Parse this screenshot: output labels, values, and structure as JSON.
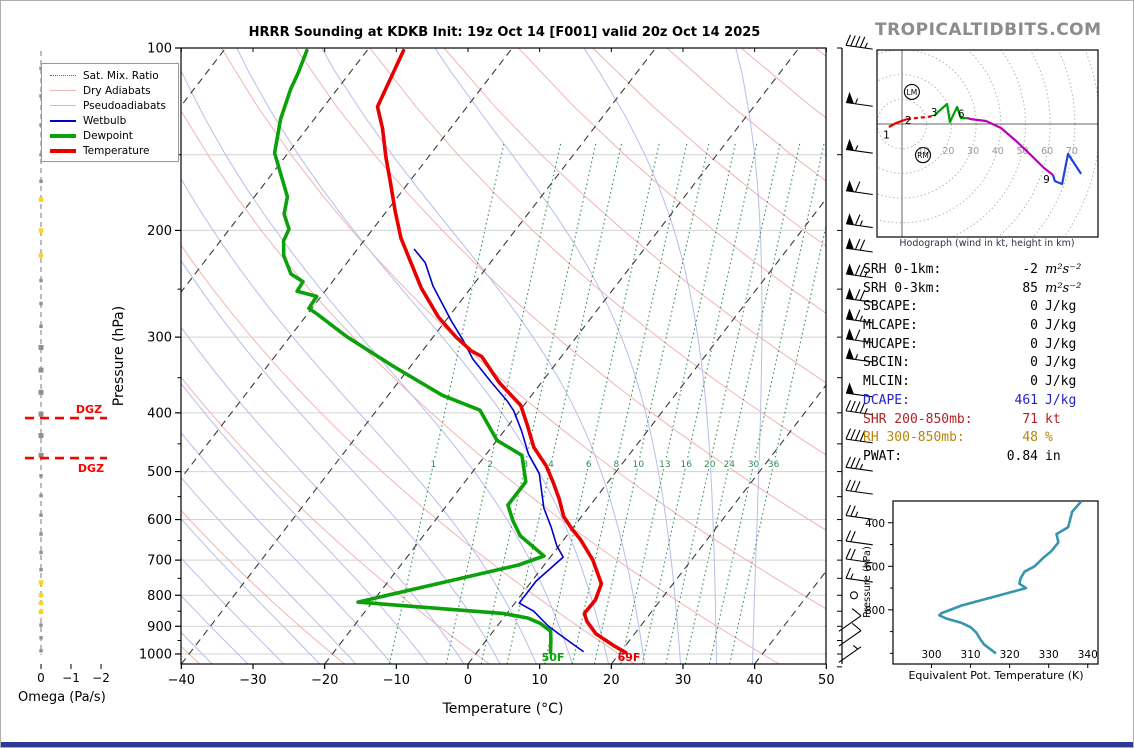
{
  "header": {
    "title": "HRRR Sounding at KDKB Init: 19z Oct 14 [F001] valid 20z Oct 14 2025",
    "watermark": "TROPICALTIDBITS.COM"
  },
  "legend": {
    "items": [
      {
        "label": "Sat. Mix. Ratio",
        "key": "satmix"
      },
      {
        "label": "Dry Adiabats",
        "key": "dry"
      },
      {
        "label": "Pseudoadiabats",
        "key": "pseudo"
      },
      {
        "label": "Wetbulb",
        "key": "wetbulb"
      },
      {
        "label": "Dewpoint",
        "key": "dewpoint"
      },
      {
        "label": "Temperature",
        "key": "temperature"
      }
    ]
  },
  "skewt": {
    "xlabel": "Temperature (°C)",
    "ylabel": "Pressure (hPa)",
    "x_ticks": [
      -40,
      -30,
      -20,
      -10,
      0,
      10,
      20,
      30,
      40,
      50
    ],
    "pressure_ticks": [
      100,
      200,
      300,
      400,
      500,
      600,
      700,
      800,
      900,
      1000
    ],
    "surface_temp_label": "69F",
    "surface_dew_label": "50F",
    "dgz_label": "DGZ",
    "mixing_ratio_values": [
      1,
      2,
      3,
      4,
      6,
      8,
      10,
      13,
      16,
      20,
      24,
      30,
      36
    ]
  },
  "omega": {
    "label": "Omega (Pa/s)",
    "ticks": [
      0,
      -1,
      -2
    ]
  },
  "hodograph": {
    "caption": "Hodograph (wind in kt, height in km)",
    "ring_labels": [
      10,
      20,
      30,
      40,
      50,
      60,
      70
    ]
  },
  "stats": {
    "rows": [
      {
        "label": "SRH 0-1km:",
        "value": "-2",
        "unit": "m²s⁻²",
        "color": "#000000",
        "unit_italic": true
      },
      {
        "label": "SRH 0-3km:",
        "value": "85",
        "unit": "m²s⁻²",
        "color": "#000000",
        "unit_italic": true
      },
      {
        "label": "SBCAPE:",
        "value": "0",
        "unit": "J/kg",
        "color": "#000000"
      },
      {
        "label": "MLCAPE:",
        "value": "0",
        "unit": "J/kg",
        "color": "#000000"
      },
      {
        "label": "MUCAPE:",
        "value": "0",
        "unit": "J/kg",
        "color": "#000000"
      },
      {
        "label": "SBCIN:",
        "value": "0",
        "unit": "J/kg",
        "color": "#000000"
      },
      {
        "label": "MLCIN:",
        "value": "0",
        "unit": "J/kg",
        "color": "#000000"
      },
      {
        "label": "DCAPE:",
        "value": "461",
        "unit": "J/kg",
        "color": "#2323cc"
      },
      {
        "label": "SHR 200-850mb:",
        "value": "71",
        "unit": "kt",
        "color": "#b22222"
      },
      {
        "label": "RH 300-850mb:",
        "value": "48",
        "unit": "%",
        "color": "#b8860b"
      },
      {
        "label": "PWAT:",
        "value": "0.84",
        "unit": "in",
        "color": "#000000"
      }
    ]
  },
  "theta_e": {
    "xlabel": "Equivalent Pot. Temperature (K)",
    "ylabel": "Pressure (hPa)",
    "x_ticks": [
      300,
      310,
      320,
      330,
      340
    ],
    "p_tick_labels": [
      400,
      600,
      800
    ]
  },
  "colors": {
    "temperature": "#e80000",
    "dewpoint": "#0aa10a",
    "wetbulb": "#0000cd",
    "dry_adiabat": "#f0b4b4",
    "pseudoadiabat": "#b9bde9",
    "sat_mix_ratio": "#2e8b57",
    "isotherm_dash": "#3a3a3a",
    "gridline": "#d3d3d3",
    "dgz": "#ff0000",
    "omega_marker": "#8f8f8f",
    "omega_marker_highlight": "#ffd21f",
    "theta_e_curve": "#3796ae",
    "hodo_seg_0_3km": "#dd0000",
    "hodo_seg_3_6km": "#00a000",
    "hodo_seg_6_9km": "#bb00bb",
    "hodo_seg_9km_plus": "#2244dd",
    "footer_bar": "#2c3a94"
  },
  "chart_data": [
    {
      "id": "skewt",
      "type": "line",
      "title": "HRRR Sounding at KDKB Init: 19z Oct 14 [F001] valid 20z Oct 14 2025",
      "xlabel": "Temperature (°C)",
      "ylabel": "Pressure (hPa)",
      "xlim": [
        -40,
        50
      ],
      "pressure_range": [
        100,
        1050
      ],
      "y_scale": "log",
      "series": [
        {
          "name": "Temperature",
          "units": "p_hPa_vs_degC",
          "points": [
            [
              101,
              -74.9
            ],
            [
              125,
              -72.5
            ],
            [
              136,
              -69.4
            ],
            [
              151,
              -66.0
            ],
            [
              167,
              -62.5
            ],
            [
              186,
              -58.8
            ],
            [
              206,
              -55.1
            ],
            [
              226,
              -51.1
            ],
            [
              249,
              -46.9
            ],
            [
              278,
              -41.4
            ],
            [
              300,
              -36.8
            ],
            [
              316,
              -33.2
            ],
            [
              323,
              -31.1
            ],
            [
              357,
              -25.8
            ],
            [
              378,
              -22.2
            ],
            [
              389,
              -20.4
            ],
            [
              420,
              -17.3
            ],
            [
              456,
              -14.1
            ],
            [
              489,
              -10.4
            ],
            [
              520,
              -7.7
            ],
            [
              555,
              -5.0
            ],
            [
              593,
              -2.5
            ],
            [
              623,
              0.1
            ],
            [
              647,
              2.3
            ],
            [
              699,
              6.2
            ],
            [
              766,
              10.0
            ],
            [
              814,
              10.9
            ],
            [
              857,
              10.8
            ],
            [
              883,
              12.0
            ],
            [
              926,
              14.6
            ],
            [
              968,
              18.3
            ],
            [
              995,
              20.8
            ]
          ]
        },
        {
          "name": "Dewpoint",
          "units": "p_hPa_vs_degC",
          "points": [
            [
              101,
              -88.4
            ],
            [
              110,
              -87.2
            ],
            [
              117,
              -86.5
            ],
            [
              131,
              -84.7
            ],
            [
              149,
              -81.9
            ],
            [
              176,
              -75.4
            ],
            [
              188,
              -74.0
            ],
            [
              199,
              -71.7
            ],
            [
              208,
              -71.2
            ],
            [
              220,
              -69.6
            ],
            [
              236,
              -66.6
            ],
            [
              243,
              -64.1
            ],
            [
              252,
              -63.9
            ],
            [
              257,
              -60.6
            ],
            [
              269,
              -60.4
            ],
            [
              275,
              -58.6
            ],
            [
              299,
              -52.2
            ],
            [
              334,
              -42.7
            ],
            [
              374,
              -32.5
            ],
            [
              396,
              -25.6
            ],
            [
              444,
              -20.0
            ],
            [
              470,
              -14.9
            ],
            [
              520,
              -11.5
            ],
            [
              568,
              -11.5
            ],
            [
              603,
              -9.1
            ],
            [
              638,
              -6.5
            ],
            [
              689,
              -1.0
            ],
            [
              713,
              -3.6
            ],
            [
              821,
              -22.0
            ],
            [
              857,
              -0.6
            ],
            [
              872,
              3.4
            ],
            [
              890,
              5.7
            ],
            [
              917,
              8.0
            ],
            [
              952,
              9.1
            ],
            [
              995,
              10.3
            ]
          ]
        },
        {
          "name": "Wetbulb",
          "units": "p_hPa_vs_degC",
          "points": [
            [
              215,
              -52.0
            ],
            [
              226,
              -49.1
            ],
            [
              247,
              -45.5
            ],
            [
              282,
              -39.2
            ],
            [
              304,
              -35.4
            ],
            [
              326,
              -32.1
            ],
            [
              355,
              -27.2
            ],
            [
              383,
              -22.7
            ],
            [
              397,
              -20.8
            ],
            [
              428,
              -17.6
            ],
            [
              468,
              -14.1
            ],
            [
              504,
              -10.5
            ],
            [
              574,
              -6.2
            ],
            [
              619,
              -3.0
            ],
            [
              663,
              -0.3
            ],
            [
              692,
              1.8
            ],
            [
              758,
              0.6
            ],
            [
              824,
              0.6
            ],
            [
              850,
              3.5
            ],
            [
              899,
              7.1
            ],
            [
              927,
              9.5
            ],
            [
              963,
              12.5
            ],
            [
              990,
              14.7
            ]
          ]
        }
      ],
      "surface_annotations": [
        {
          "text": "69F",
          "color": "#e80000"
        },
        {
          "text": "50F",
          "color": "#0aa10a"
        }
      ]
    },
    {
      "id": "hodograph",
      "type": "line",
      "units": "kt",
      "rings_kt": [
        10,
        20,
        30,
        40,
        50,
        60,
        70
      ],
      "segments": [
        {
          "name": "0-3km",
          "color": "#dd0000",
          "style": "solid",
          "points": [
            [
              -5.3,
              -1.2
            ],
            [
              -2.4,
              0.4
            ],
            [
              2.0,
              2.0
            ]
          ]
        },
        {
          "name": "2-3km",
          "color": "#dd0000",
          "style": "dashed",
          "points": [
            [
              2.0,
              2.0
            ],
            [
              13.0,
              3.2
            ]
          ]
        },
        {
          "name": "3-6km",
          "color": "#00a000",
          "style": "solid",
          "points": [
            [
              13.0,
              3.2
            ],
            [
              14.6,
              4.9
            ],
            [
              18.2,
              8.1
            ],
            [
              19.4,
              0.8
            ],
            [
              22.3,
              6.9
            ],
            [
              23.9,
              2.4
            ],
            [
              26.3,
              2.4
            ]
          ]
        },
        {
          "name": "6-9km",
          "color": "#bb00bb",
          "style": "solid",
          "points": [
            [
              26.3,
              2.4
            ],
            [
              27.9,
              2.0
            ],
            [
              34.0,
              1.2
            ],
            [
              40.1,
              -1.6
            ],
            [
              46.2,
              -6.9
            ],
            [
              52.2,
              -12.6
            ],
            [
              57.5,
              -17.8
            ],
            [
              61.1,
              -20.6
            ]
          ]
        },
        {
          "name": "9km+",
          "color": "#2244dd",
          "style": "solid",
          "points": [
            [
              61.1,
              -20.6
            ],
            [
              61.9,
              -23.1
            ],
            [
              64.8,
              -24.3
            ],
            [
              67.2,
              -12.1
            ],
            [
              72.5,
              -20.2
            ]
          ]
        }
      ],
      "height_labels": [
        {
          "text": "1",
          "u": -6.3,
          "v": -4.5
        },
        {
          "text": "2",
          "u": 2.5,
          "v": 1.4
        },
        {
          "text": "3",
          "u": 13.0,
          "v": 4.6
        },
        {
          "text": "6",
          "u": 24.0,
          "v": 4.0
        },
        {
          "text": "9",
          "u": 58.5,
          "v": -22.5
        }
      ],
      "storm_motions": [
        {
          "label": "LM",
          "u": 4.0,
          "v": 13.0
        },
        {
          "label": "RM",
          "u": 8.5,
          "v": -12.6
        }
      ]
    },
    {
      "id": "theta_e",
      "type": "line",
      "xlabel": "Equivalent Pot. Temperature (K)",
      "ylabel": "Pressure (hPa)",
      "xlim": [
        292,
        342
      ],
      "pressure_range": [
        300,
        1050
      ],
      "points": [
        [
          300,
          338.4
        ],
        [
          350,
          336.0
        ],
        [
          420,
          335.0
        ],
        [
          452,
          332.0
        ],
        [
          490,
          332.5
        ],
        [
          530,
          330.7
        ],
        [
          560,
          328.7
        ],
        [
          600,
          326.4
        ],
        [
          625,
          323.8
        ],
        [
          655,
          322.8
        ],
        [
          680,
          322.5
        ],
        [
          700,
          324.2
        ],
        [
          740,
          316.0
        ],
        [
          780,
          307.7
        ],
        [
          815,
          302.6
        ],
        [
          825,
          302.0
        ],
        [
          840,
          303.8
        ],
        [
          860,
          307.7
        ],
        [
          880,
          310.0
        ],
        [
          905,
          311.5
        ],
        [
          935,
          312.5
        ],
        [
          960,
          313.5
        ],
        [
          1000,
          316.5
        ]
      ]
    },
    {
      "id": "wind_barbs",
      "units": "kt",
      "levels": [
        {
          "p": 99,
          "spd": 45,
          "dir": "w"
        },
        {
          "p": 123,
          "spd": 55,
          "dir": "w"
        },
        {
          "p": 147,
          "spd": 55,
          "dir": "w"
        },
        {
          "p": 172,
          "spd": 60,
          "dir": "w"
        },
        {
          "p": 195,
          "spd": 65,
          "dir": "w"
        },
        {
          "p": 214,
          "spd": 70,
          "dir": "w"
        },
        {
          "p": 236,
          "spd": 75,
          "dir": "w"
        },
        {
          "p": 259,
          "spd": 70,
          "dir": "w"
        },
        {
          "p": 280,
          "spd": 65,
          "dir": "w"
        },
        {
          "p": 302,
          "spd": 60,
          "dir": "w"
        },
        {
          "p": 325,
          "spd": 55,
          "dir": "w"
        },
        {
          "p": 371,
          "spd": 50,
          "dir": "w"
        },
        {
          "p": 397,
          "spd": 45,
          "dir": "w"
        },
        {
          "p": 442,
          "spd": 40,
          "dir": "w"
        },
        {
          "p": 492,
          "spd": 35,
          "dir": "w"
        },
        {
          "p": 537,
          "spd": 30,
          "dir": "w"
        },
        {
          "p": 591,
          "spd": 25,
          "dir": "w"
        },
        {
          "p": 651,
          "spd": 20,
          "dir": "w"
        },
        {
          "p": 697,
          "spd": 20,
          "dir": "w"
        },
        {
          "p": 750,
          "spd": 15,
          "dir": "w"
        },
        {
          "p": 800,
          "spd": 0,
          "dir": "calm"
        },
        {
          "p": 865,
          "spd": 10,
          "dir": "sw"
        },
        {
          "p": 915,
          "spd": 10,
          "dir": "sw"
        },
        {
          "p": 973,
          "spd": 5,
          "dir": "sw"
        }
      ]
    },
    {
      "id": "omega",
      "units": "Pa/s",
      "xlabel": "Omega (Pa/s)",
      "x_ticks": [
        0,
        -1,
        -2
      ],
      "profile_note": "omega approximately 0 Pa/s at all levels",
      "dgz_pressures": [
        408,
        475
      ],
      "markers": [
        {
          "p": 108,
          "highlight": false
        },
        {
          "p": 120,
          "highlight": false
        },
        {
          "p": 134,
          "highlight": false
        },
        {
          "p": 150,
          "highlight": false
        },
        {
          "p": 166,
          "highlight": false
        },
        {
          "p": 178,
          "highlight": true
        },
        {
          "p": 200,
          "highlight": true
        },
        {
          "p": 220,
          "highlight": true
        },
        {
          "p": 242,
          "highlight": false
        },
        {
          "p": 264,
          "highlight": false
        },
        {
          "p": 288,
          "highlight": false
        },
        {
          "p": 312,
          "highlight": false
        },
        {
          "p": 340,
          "highlight": false
        },
        {
          "p": 370,
          "highlight": false
        },
        {
          "p": 402,
          "highlight": false
        },
        {
          "p": 436,
          "highlight": false
        },
        {
          "p": 470,
          "highlight": false
        },
        {
          "p": 508,
          "highlight": false
        },
        {
          "p": 548,
          "highlight": false
        },
        {
          "p": 590,
          "highlight": false
        },
        {
          "p": 634,
          "highlight": false
        },
        {
          "p": 680,
          "highlight": false
        },
        {
          "p": 726,
          "highlight": false
        },
        {
          "p": 762,
          "highlight": true
        },
        {
          "p": 800,
          "highlight": true
        },
        {
          "p": 824,
          "highlight": true
        },
        {
          "p": 852,
          "highlight": true
        },
        {
          "p": 896,
          "highlight": false
        },
        {
          "p": 940,
          "highlight": false
        },
        {
          "p": 988,
          "highlight": false
        }
      ]
    }
  ]
}
